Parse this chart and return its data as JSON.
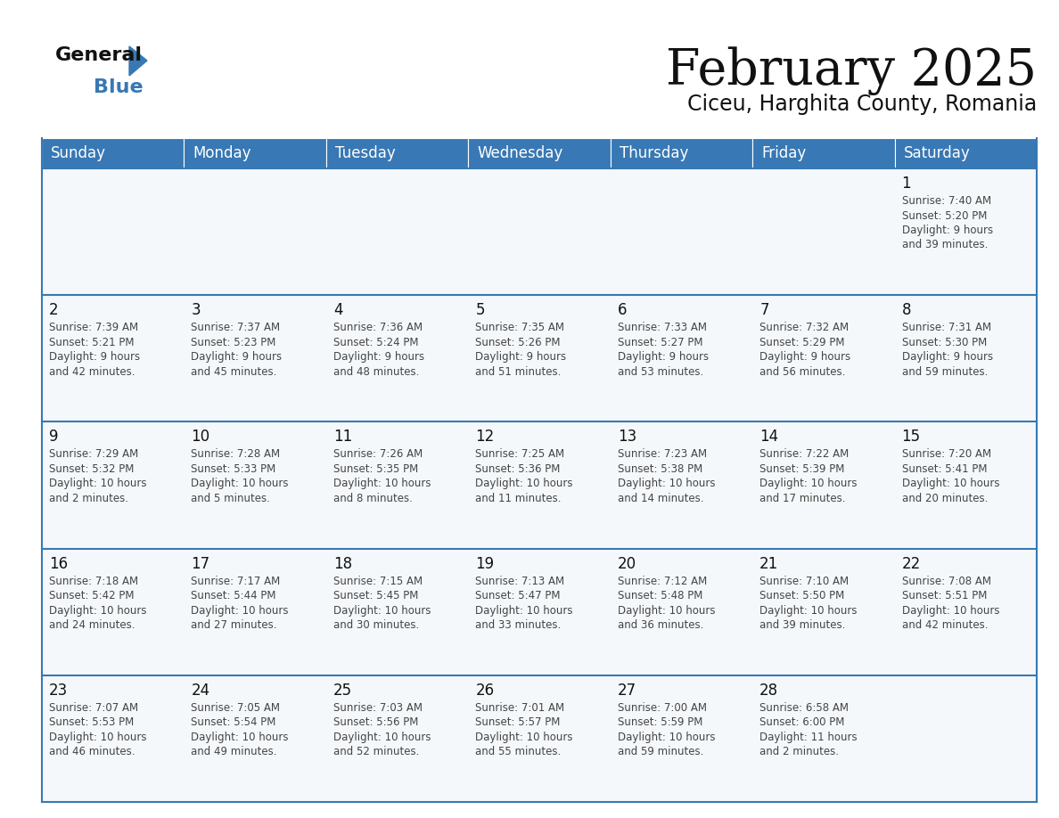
{
  "title": "February 2025",
  "subtitle": "Ciceu, Harghita County, Romania",
  "days_of_week": [
    "Sunday",
    "Monday",
    "Tuesday",
    "Wednesday",
    "Thursday",
    "Friday",
    "Saturday"
  ],
  "header_bg": "#3878b4",
  "header_text": "#ffffff",
  "cell_bg": "#f5f8fb",
  "cell_bg2": "#ffffff",
  "border_color": "#3878b4",
  "day_num_color": "#111111",
  "info_color": "#444444",
  "title_color": "#111111",
  "subtitle_color": "#111111",
  "logo_black": "#111111",
  "logo_blue": "#3878b4",
  "logo_triangle": "#3878b4",
  "calendar": [
    [
      null,
      null,
      null,
      null,
      null,
      null,
      {
        "day": "1",
        "sunrise": "7:40 AM",
        "sunset": "5:20 PM",
        "daylight_h": "9 hours",
        "daylight_m": "and 39 minutes."
      }
    ],
    [
      {
        "day": "2",
        "sunrise": "7:39 AM",
        "sunset": "5:21 PM",
        "daylight_h": "9 hours",
        "daylight_m": "and 42 minutes."
      },
      {
        "day": "3",
        "sunrise": "7:37 AM",
        "sunset": "5:23 PM",
        "daylight_h": "9 hours",
        "daylight_m": "and 45 minutes."
      },
      {
        "day": "4",
        "sunrise": "7:36 AM",
        "sunset": "5:24 PM",
        "daylight_h": "9 hours",
        "daylight_m": "and 48 minutes."
      },
      {
        "day": "5",
        "sunrise": "7:35 AM",
        "sunset": "5:26 PM",
        "daylight_h": "9 hours",
        "daylight_m": "and 51 minutes."
      },
      {
        "day": "6",
        "sunrise": "7:33 AM",
        "sunset": "5:27 PM",
        "daylight_h": "9 hours",
        "daylight_m": "and 53 minutes."
      },
      {
        "day": "7",
        "sunrise": "7:32 AM",
        "sunset": "5:29 PM",
        "daylight_h": "9 hours",
        "daylight_m": "and 56 minutes."
      },
      {
        "day": "8",
        "sunrise": "7:31 AM",
        "sunset": "5:30 PM",
        "daylight_h": "9 hours",
        "daylight_m": "and 59 minutes."
      }
    ],
    [
      {
        "day": "9",
        "sunrise": "7:29 AM",
        "sunset": "5:32 PM",
        "daylight_h": "10 hours",
        "daylight_m": "and 2 minutes."
      },
      {
        "day": "10",
        "sunrise": "7:28 AM",
        "sunset": "5:33 PM",
        "daylight_h": "10 hours",
        "daylight_m": "and 5 minutes."
      },
      {
        "day": "11",
        "sunrise": "7:26 AM",
        "sunset": "5:35 PM",
        "daylight_h": "10 hours",
        "daylight_m": "and 8 minutes."
      },
      {
        "day": "12",
        "sunrise": "7:25 AM",
        "sunset": "5:36 PM",
        "daylight_h": "10 hours",
        "daylight_m": "and 11 minutes."
      },
      {
        "day": "13",
        "sunrise": "7:23 AM",
        "sunset": "5:38 PM",
        "daylight_h": "10 hours",
        "daylight_m": "and 14 minutes."
      },
      {
        "day": "14",
        "sunrise": "7:22 AM",
        "sunset": "5:39 PM",
        "daylight_h": "10 hours",
        "daylight_m": "and 17 minutes."
      },
      {
        "day": "15",
        "sunrise": "7:20 AM",
        "sunset": "5:41 PM",
        "daylight_h": "10 hours",
        "daylight_m": "and 20 minutes."
      }
    ],
    [
      {
        "day": "16",
        "sunrise": "7:18 AM",
        "sunset": "5:42 PM",
        "daylight_h": "10 hours",
        "daylight_m": "and 24 minutes."
      },
      {
        "day": "17",
        "sunrise": "7:17 AM",
        "sunset": "5:44 PM",
        "daylight_h": "10 hours",
        "daylight_m": "and 27 minutes."
      },
      {
        "day": "18",
        "sunrise": "7:15 AM",
        "sunset": "5:45 PM",
        "daylight_h": "10 hours",
        "daylight_m": "and 30 minutes."
      },
      {
        "day": "19",
        "sunrise": "7:13 AM",
        "sunset": "5:47 PM",
        "daylight_h": "10 hours",
        "daylight_m": "and 33 minutes."
      },
      {
        "day": "20",
        "sunrise": "7:12 AM",
        "sunset": "5:48 PM",
        "daylight_h": "10 hours",
        "daylight_m": "and 36 minutes."
      },
      {
        "day": "21",
        "sunrise": "7:10 AM",
        "sunset": "5:50 PM",
        "daylight_h": "10 hours",
        "daylight_m": "and 39 minutes."
      },
      {
        "day": "22",
        "sunrise": "7:08 AM",
        "sunset": "5:51 PM",
        "daylight_h": "10 hours",
        "daylight_m": "and 42 minutes."
      }
    ],
    [
      {
        "day": "23",
        "sunrise": "7:07 AM",
        "sunset": "5:53 PM",
        "daylight_h": "10 hours",
        "daylight_m": "and 46 minutes."
      },
      {
        "day": "24",
        "sunrise": "7:05 AM",
        "sunset": "5:54 PM",
        "daylight_h": "10 hours",
        "daylight_m": "and 49 minutes."
      },
      {
        "day": "25",
        "sunrise": "7:03 AM",
        "sunset": "5:56 PM",
        "daylight_h": "10 hours",
        "daylight_m": "and 52 minutes."
      },
      {
        "day": "26",
        "sunrise": "7:01 AM",
        "sunset": "5:57 PM",
        "daylight_h": "10 hours",
        "daylight_m": "and 55 minutes."
      },
      {
        "day": "27",
        "sunrise": "7:00 AM",
        "sunset": "5:59 PM",
        "daylight_h": "10 hours",
        "daylight_m": "and 59 minutes."
      },
      {
        "day": "28",
        "sunrise": "6:58 AM",
        "sunset": "6:00 PM",
        "daylight_h": "11 hours",
        "daylight_m": "and 2 minutes."
      },
      null
    ]
  ]
}
